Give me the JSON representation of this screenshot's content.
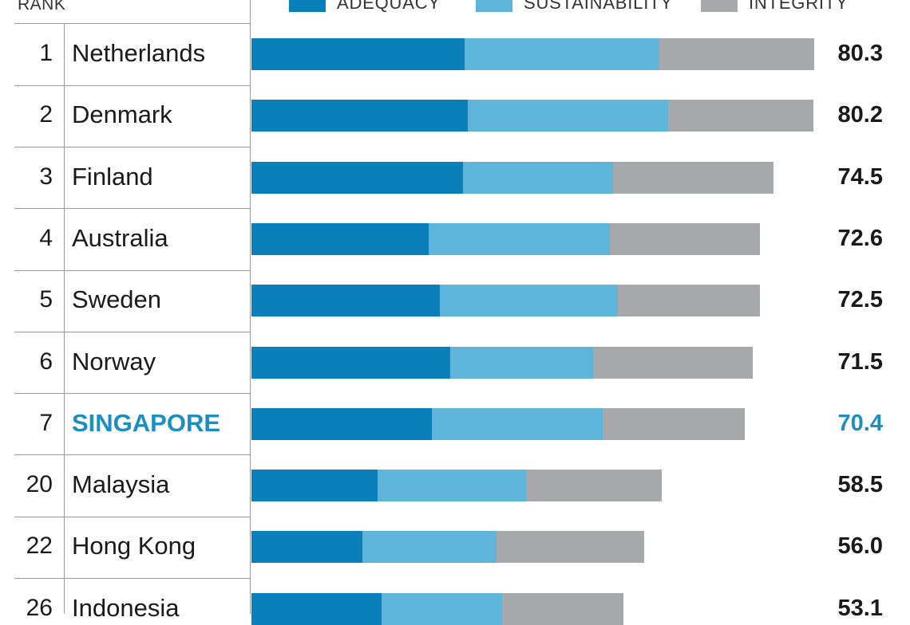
{
  "chart_data": {
    "type": "bar",
    "orientation": "horizontal",
    "stacked": true,
    "rank_header": "RANK",
    "legend": [
      {
        "name": "ADEQUACY",
        "color": "#0a7fba"
      },
      {
        "name": "SUSTAINABILITY",
        "color": "#5fb4d9"
      },
      {
        "name": "INTEGRITY",
        "color": "#a7a8aa"
      }
    ],
    "highlight_color": "#1a8fc0",
    "rows": [
      {
        "rank": "1",
        "country": "Netherlands",
        "total": "80.3",
        "segments": [
          30.4,
          27.8,
          22.1
        ],
        "highlight": false
      },
      {
        "rank": "2",
        "country": "Denmark",
        "total": "80.2",
        "segments": [
          30.9,
          28.6,
          20.7
        ],
        "highlight": false
      },
      {
        "rank": "3",
        "country": "Finland",
        "total": "74.5",
        "segments": [
          30.2,
          21.4,
          22.9
        ],
        "highlight": false
      },
      {
        "rank": "4",
        "country": "Australia",
        "total": "72.6",
        "segments": [
          25.3,
          25.8,
          21.5
        ],
        "highlight": false
      },
      {
        "rank": "5",
        "country": "Sweden",
        "total": "72.5",
        "segments": [
          26.9,
          25.4,
          20.2
        ],
        "highlight": false
      },
      {
        "rank": "6",
        "country": "Norway",
        "total": "71.5",
        "segments": [
          28.4,
          20.3,
          22.8
        ],
        "highlight": false
      },
      {
        "rank": "7",
        "country": "SINGAPORE",
        "total": "70.4",
        "segments": [
          25.7,
          24.4,
          20.3
        ],
        "highlight": true
      },
      {
        "rank": "20",
        "country": "Malaysia",
        "total": "58.5",
        "segments": [
          18.0,
          21.2,
          19.3
        ],
        "highlight": false
      },
      {
        "rank": "22",
        "country": "Hong Kong",
        "total": "56.0",
        "segments": [
          15.8,
          19.2,
          21.0
        ],
        "highlight": false
      },
      {
        "rank": "26",
        "country": "Indonesia",
        "total": "53.1",
        "segments": [
          18.6,
          17.2,
          17.3
        ],
        "highlight": false
      }
    ]
  }
}
